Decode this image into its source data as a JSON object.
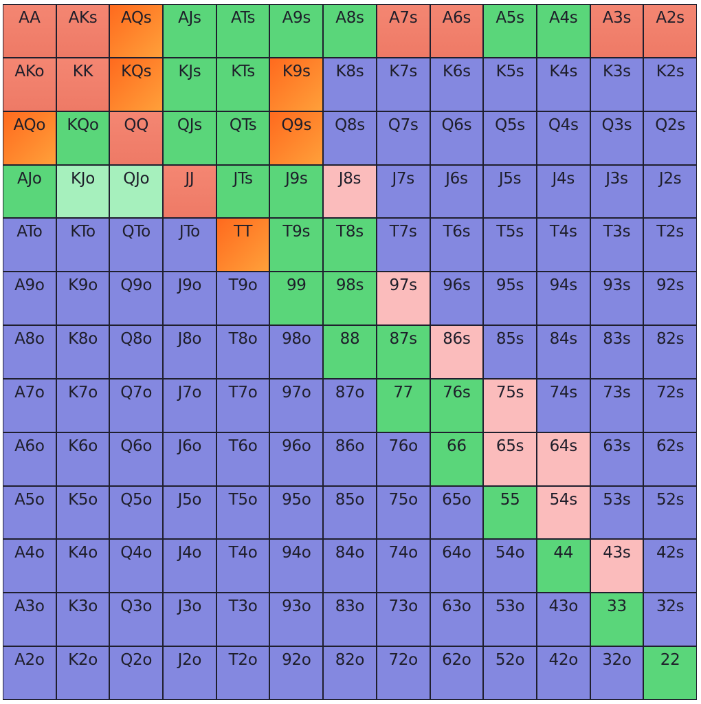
{
  "colors": {
    "raise_red": "#ee7a66",
    "raise_orange": "#ff8a2a",
    "call_green": "#5ad67a",
    "light_green": "#a6f0bd",
    "light_pink": "#fbbcbc",
    "fold_blue": "#8488e0"
  },
  "grid": [
    [
      {
        "hand": "AA",
        "action": "red"
      },
      {
        "hand": "AKs",
        "action": "red"
      },
      {
        "hand": "AQs",
        "action": "orange"
      },
      {
        "hand": "AJs",
        "action": "green"
      },
      {
        "hand": "ATs",
        "action": "green"
      },
      {
        "hand": "A9s",
        "action": "green"
      },
      {
        "hand": "A8s",
        "action": "green"
      },
      {
        "hand": "A7s",
        "action": "red"
      },
      {
        "hand": "A6s",
        "action": "red"
      },
      {
        "hand": "A5s",
        "action": "green"
      },
      {
        "hand": "A4s",
        "action": "green"
      },
      {
        "hand": "A3s",
        "action": "red"
      },
      {
        "hand": "A2s",
        "action": "red"
      }
    ],
    [
      {
        "hand": "AKo",
        "action": "red"
      },
      {
        "hand": "KK",
        "action": "red"
      },
      {
        "hand": "KQs",
        "action": "orange"
      },
      {
        "hand": "KJs",
        "action": "green"
      },
      {
        "hand": "KTs",
        "action": "green"
      },
      {
        "hand": "K9s",
        "action": "orange"
      },
      {
        "hand": "K8s",
        "action": "blue"
      },
      {
        "hand": "K7s",
        "action": "blue"
      },
      {
        "hand": "K6s",
        "action": "blue"
      },
      {
        "hand": "K5s",
        "action": "blue"
      },
      {
        "hand": "K4s",
        "action": "blue"
      },
      {
        "hand": "K3s",
        "action": "blue"
      },
      {
        "hand": "K2s",
        "action": "blue"
      }
    ],
    [
      {
        "hand": "AQo",
        "action": "orange"
      },
      {
        "hand": "KQo",
        "action": "green"
      },
      {
        "hand": "QQ",
        "action": "red"
      },
      {
        "hand": "QJs",
        "action": "green"
      },
      {
        "hand": "QTs",
        "action": "green"
      },
      {
        "hand": "Q9s",
        "action": "orange"
      },
      {
        "hand": "Q8s",
        "action": "blue"
      },
      {
        "hand": "Q7s",
        "action": "blue"
      },
      {
        "hand": "Q6s",
        "action": "blue"
      },
      {
        "hand": "Q5s",
        "action": "blue"
      },
      {
        "hand": "Q4s",
        "action": "blue"
      },
      {
        "hand": "Q3s",
        "action": "blue"
      },
      {
        "hand": "Q2s",
        "action": "blue"
      }
    ],
    [
      {
        "hand": "AJo",
        "action": "green"
      },
      {
        "hand": "KJo",
        "action": "lgreen"
      },
      {
        "hand": "QJo",
        "action": "lgreen"
      },
      {
        "hand": "JJ",
        "action": "red"
      },
      {
        "hand": "JTs",
        "action": "green"
      },
      {
        "hand": "J9s",
        "action": "green"
      },
      {
        "hand": "J8s",
        "action": "pink"
      },
      {
        "hand": "J7s",
        "action": "blue"
      },
      {
        "hand": "J6s",
        "action": "blue"
      },
      {
        "hand": "J5s",
        "action": "blue"
      },
      {
        "hand": "J4s",
        "action": "blue"
      },
      {
        "hand": "J3s",
        "action": "blue"
      },
      {
        "hand": "J2s",
        "action": "blue"
      }
    ],
    [
      {
        "hand": "ATo",
        "action": "blue"
      },
      {
        "hand": "KTo",
        "action": "blue"
      },
      {
        "hand": "QTo",
        "action": "blue"
      },
      {
        "hand": "JTo",
        "action": "blue"
      },
      {
        "hand": "TT",
        "action": "orange"
      },
      {
        "hand": "T9s",
        "action": "green"
      },
      {
        "hand": "T8s",
        "action": "green"
      },
      {
        "hand": "T7s",
        "action": "blue"
      },
      {
        "hand": "T6s",
        "action": "blue"
      },
      {
        "hand": "T5s",
        "action": "blue"
      },
      {
        "hand": "T4s",
        "action": "blue"
      },
      {
        "hand": "T3s",
        "action": "blue"
      },
      {
        "hand": "T2s",
        "action": "blue"
      }
    ],
    [
      {
        "hand": "A9o",
        "action": "blue"
      },
      {
        "hand": "K9o",
        "action": "blue"
      },
      {
        "hand": "Q9o",
        "action": "blue"
      },
      {
        "hand": "J9o",
        "action": "blue"
      },
      {
        "hand": "T9o",
        "action": "blue"
      },
      {
        "hand": "99",
        "action": "green"
      },
      {
        "hand": "98s",
        "action": "green"
      },
      {
        "hand": "97s",
        "action": "pink"
      },
      {
        "hand": "96s",
        "action": "blue"
      },
      {
        "hand": "95s",
        "action": "blue"
      },
      {
        "hand": "94s",
        "action": "blue"
      },
      {
        "hand": "93s",
        "action": "blue"
      },
      {
        "hand": "92s",
        "action": "blue"
      }
    ],
    [
      {
        "hand": "A8o",
        "action": "blue"
      },
      {
        "hand": "K8o",
        "action": "blue"
      },
      {
        "hand": "Q8o",
        "action": "blue"
      },
      {
        "hand": "J8o",
        "action": "blue"
      },
      {
        "hand": "T8o",
        "action": "blue"
      },
      {
        "hand": "98o",
        "action": "blue"
      },
      {
        "hand": "88",
        "action": "green"
      },
      {
        "hand": "87s",
        "action": "green"
      },
      {
        "hand": "86s",
        "action": "pink"
      },
      {
        "hand": "85s",
        "action": "blue"
      },
      {
        "hand": "84s",
        "action": "blue"
      },
      {
        "hand": "83s",
        "action": "blue"
      },
      {
        "hand": "82s",
        "action": "blue"
      }
    ],
    [
      {
        "hand": "A7o",
        "action": "blue"
      },
      {
        "hand": "K7o",
        "action": "blue"
      },
      {
        "hand": "Q7o",
        "action": "blue"
      },
      {
        "hand": "J7o",
        "action": "blue"
      },
      {
        "hand": "T7o",
        "action": "blue"
      },
      {
        "hand": "97o",
        "action": "blue"
      },
      {
        "hand": "87o",
        "action": "blue"
      },
      {
        "hand": "77",
        "action": "green"
      },
      {
        "hand": "76s",
        "action": "green"
      },
      {
        "hand": "75s",
        "action": "pink"
      },
      {
        "hand": "74s",
        "action": "blue"
      },
      {
        "hand": "73s",
        "action": "blue"
      },
      {
        "hand": "72s",
        "action": "blue"
      }
    ],
    [
      {
        "hand": "A6o",
        "action": "blue"
      },
      {
        "hand": "K6o",
        "action": "blue"
      },
      {
        "hand": "Q6o",
        "action": "blue"
      },
      {
        "hand": "J6o",
        "action": "blue"
      },
      {
        "hand": "T6o",
        "action": "blue"
      },
      {
        "hand": "96o",
        "action": "blue"
      },
      {
        "hand": "86o",
        "action": "blue"
      },
      {
        "hand": "76o",
        "action": "blue"
      },
      {
        "hand": "66",
        "action": "green"
      },
      {
        "hand": "65s",
        "action": "pink"
      },
      {
        "hand": "64s",
        "action": "pink"
      },
      {
        "hand": "63s",
        "action": "blue"
      },
      {
        "hand": "62s",
        "action": "blue"
      }
    ],
    [
      {
        "hand": "A5o",
        "action": "blue"
      },
      {
        "hand": "K5o",
        "action": "blue"
      },
      {
        "hand": "Q5o",
        "action": "blue"
      },
      {
        "hand": "J5o",
        "action": "blue"
      },
      {
        "hand": "T5o",
        "action": "blue"
      },
      {
        "hand": "95o",
        "action": "blue"
      },
      {
        "hand": "85o",
        "action": "blue"
      },
      {
        "hand": "75o",
        "action": "blue"
      },
      {
        "hand": "65o",
        "action": "blue"
      },
      {
        "hand": "55",
        "action": "green"
      },
      {
        "hand": "54s",
        "action": "pink"
      },
      {
        "hand": "53s",
        "action": "blue"
      },
      {
        "hand": "52s",
        "action": "blue"
      }
    ],
    [
      {
        "hand": "A4o",
        "action": "blue"
      },
      {
        "hand": "K4o",
        "action": "blue"
      },
      {
        "hand": "Q4o",
        "action": "blue"
      },
      {
        "hand": "J4o",
        "action": "blue"
      },
      {
        "hand": "T4o",
        "action": "blue"
      },
      {
        "hand": "94o",
        "action": "blue"
      },
      {
        "hand": "84o",
        "action": "blue"
      },
      {
        "hand": "74o",
        "action": "blue"
      },
      {
        "hand": "64o",
        "action": "blue"
      },
      {
        "hand": "54o",
        "action": "blue"
      },
      {
        "hand": "44",
        "action": "green"
      },
      {
        "hand": "43s",
        "action": "pink"
      },
      {
        "hand": "42s",
        "action": "blue"
      }
    ],
    [
      {
        "hand": "A3o",
        "action": "blue"
      },
      {
        "hand": "K3o",
        "action": "blue"
      },
      {
        "hand": "Q3o",
        "action": "blue"
      },
      {
        "hand": "J3o",
        "action": "blue"
      },
      {
        "hand": "T3o",
        "action": "blue"
      },
      {
        "hand": "93o",
        "action": "blue"
      },
      {
        "hand": "83o",
        "action": "blue"
      },
      {
        "hand": "73o",
        "action": "blue"
      },
      {
        "hand": "63o",
        "action": "blue"
      },
      {
        "hand": "53o",
        "action": "blue"
      },
      {
        "hand": "43o",
        "action": "blue"
      },
      {
        "hand": "33",
        "action": "green"
      },
      {
        "hand": "32s",
        "action": "blue"
      }
    ],
    [
      {
        "hand": "A2o",
        "action": "blue"
      },
      {
        "hand": "K2o",
        "action": "blue"
      },
      {
        "hand": "Q2o",
        "action": "blue"
      },
      {
        "hand": "J2o",
        "action": "blue"
      },
      {
        "hand": "T2o",
        "action": "blue"
      },
      {
        "hand": "92o",
        "action": "blue"
      },
      {
        "hand": "82o",
        "action": "blue"
      },
      {
        "hand": "72o",
        "action": "blue"
      },
      {
        "hand": "62o",
        "action": "blue"
      },
      {
        "hand": "52o",
        "action": "blue"
      },
      {
        "hand": "42o",
        "action": "blue"
      },
      {
        "hand": "32o",
        "action": "blue"
      },
      {
        "hand": "22",
        "action": "green"
      }
    ]
  ]
}
